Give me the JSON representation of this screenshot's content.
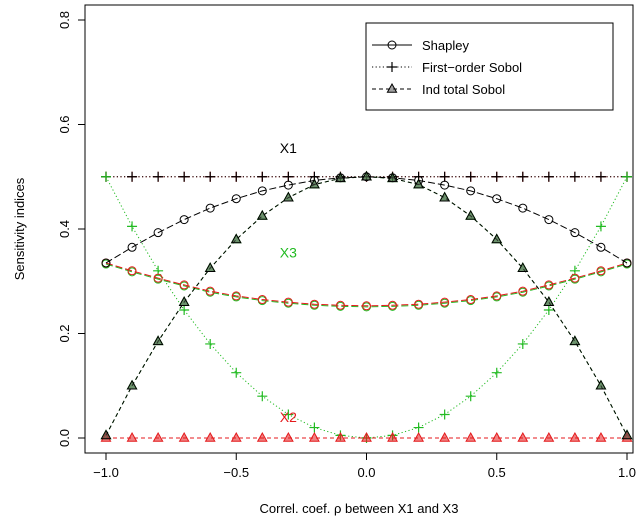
{
  "chart_data": {
    "type": "line",
    "title": "",
    "xlabel": "Correl. coef. ρ between X1 and X3",
    "ylabel": "Sensitivity indices",
    "xlim": [
      -1.0,
      1.0
    ],
    "ylim": [
      0.0,
      0.8
    ],
    "xticks": [
      -1.0,
      -0.5,
      0.0,
      0.5,
      1.0
    ],
    "xtick_labels": [
      "−1.0",
      "−0.5",
      "0.0",
      "0.5",
      "1.0"
    ],
    "yticks": [
      0.0,
      0.2,
      0.4,
      0.6,
      0.8
    ],
    "ytick_labels": [
      "0.0",
      "0.2",
      "0.4",
      "0.6",
      "0.8"
    ],
    "grid": false,
    "legend_position": "top-right",
    "legend": [
      {
        "label": "Shapley",
        "marker": "circle",
        "line": "solid"
      },
      {
        "label": "First−order Sobol",
        "marker": "plus",
        "line": "dotted"
      },
      {
        "label": "Ind total Sobol",
        "marker": "triangle",
        "line": "dashed"
      }
    ],
    "x": [
      -1.0,
      -0.9,
      -0.8,
      -0.7,
      -0.6,
      -0.5,
      -0.4,
      -0.3,
      -0.2,
      -0.1,
      0.0,
      0.1,
      0.2,
      0.3,
      0.4,
      0.5,
      0.6,
      0.7,
      0.8,
      0.9,
      1.0
    ],
    "series": [
      {
        "variable": "X1",
        "index": "Shapley",
        "color": "#000000",
        "marker": "circle",
        "dash": "solid",
        "values": [
          0.335,
          0.365,
          0.393,
          0.418,
          0.44,
          0.458,
          0.473,
          0.484,
          0.493,
          0.498,
          0.5,
          0.498,
          0.493,
          0.484,
          0.473,
          0.458,
          0.44,
          0.418,
          0.393,
          0.365,
          0.335
        ]
      },
      {
        "variable": "X1",
        "index": "First-order Sobol",
        "color": "#000000",
        "marker": "plus",
        "dash": "dotted",
        "values": [
          0.5,
          0.5,
          0.5,
          0.5,
          0.5,
          0.5,
          0.5,
          0.5,
          0.5,
          0.5,
          0.5,
          0.5,
          0.5,
          0.5,
          0.5,
          0.5,
          0.5,
          0.5,
          0.5,
          0.5,
          0.5
        ]
      },
      {
        "variable": "X1",
        "index": "Ind total Sobol",
        "color": "#000000",
        "marker": "triangle",
        "dash": "dashed",
        "values": [
          0.005,
          0.1,
          0.185,
          0.26,
          0.325,
          0.38,
          0.425,
          0.46,
          0.485,
          0.497,
          0.5,
          0.497,
          0.485,
          0.46,
          0.425,
          0.38,
          0.325,
          0.26,
          0.185,
          0.1,
          0.005
        ]
      },
      {
        "variable": "X2",
        "index": "Shapley",
        "color": "#e41a1c",
        "marker": "circle",
        "dash": "solid",
        "values": [
          0.335,
          0.32,
          0.306,
          0.293,
          0.281,
          0.272,
          0.265,
          0.26,
          0.256,
          0.254,
          0.253,
          0.254,
          0.256,
          0.26,
          0.265,
          0.272,
          0.281,
          0.293,
          0.306,
          0.32,
          0.335
        ]
      },
      {
        "variable": "X2",
        "index": "First-order Sobol",
        "color": "#e41a1c",
        "marker": "plus",
        "dash": "dotted",
        "values": [
          0.5,
          0.5,
          0.5,
          0.5,
          0.5,
          0.5,
          0.5,
          0.5,
          0.5,
          0.5,
          0.5,
          0.5,
          0.5,
          0.5,
          0.5,
          0.5,
          0.5,
          0.5,
          0.5,
          0.5,
          0.5
        ]
      },
      {
        "variable": "X2",
        "index": "Ind total Sobol",
        "color": "#e41a1c",
        "marker": "triangle",
        "dash": "dashed",
        "values": [
          0.0,
          0.0,
          0.0,
          0.0,
          0.0,
          0.0,
          0.0,
          0.0,
          0.0,
          0.0,
          0.0,
          0.0,
          0.0,
          0.0,
          0.0,
          0.0,
          0.0,
          0.0,
          0.0,
          0.0,
          0.0
        ]
      },
      {
        "variable": "X3",
        "index": "Shapley",
        "color": "#22bb22",
        "marker": "circle",
        "dash": "solid",
        "values": [
          0.333,
          0.318,
          0.304,
          0.291,
          0.279,
          0.27,
          0.263,
          0.258,
          0.254,
          0.252,
          0.251,
          0.252,
          0.254,
          0.258,
          0.263,
          0.27,
          0.279,
          0.291,
          0.304,
          0.318,
          0.333
        ]
      },
      {
        "variable": "X3",
        "index": "First-order Sobol",
        "color": "#22bb22",
        "marker": "plus",
        "dash": "dotted",
        "values": [
          0.5,
          0.405,
          0.32,
          0.245,
          0.18,
          0.125,
          0.08,
          0.045,
          0.02,
          0.005,
          0.0,
          0.005,
          0.02,
          0.045,
          0.08,
          0.125,
          0.18,
          0.245,
          0.32,
          0.405,
          0.5
        ]
      },
      {
        "variable": "X3",
        "index": "Ind total Sobol",
        "color": "#22bb22",
        "marker": "triangle",
        "dash": "dashed",
        "values": [
          0.005,
          0.1,
          0.185,
          0.26,
          0.325,
          0.38,
          0.425,
          0.46,
          0.485,
          0.497,
          0.5,
          0.497,
          0.485,
          0.46,
          0.425,
          0.38,
          0.325,
          0.26,
          0.185,
          0.1,
          0.005
        ]
      }
    ],
    "annotations": [
      {
        "text": "X1",
        "x": -0.3,
        "y": 0.555,
        "color": "#000000"
      },
      {
        "text": "X3",
        "x": -0.3,
        "y": 0.355,
        "color": "#22bb22"
      },
      {
        "text": "X2",
        "x": -0.3,
        "y": 0.04,
        "color": "#e41a1c"
      }
    ]
  }
}
